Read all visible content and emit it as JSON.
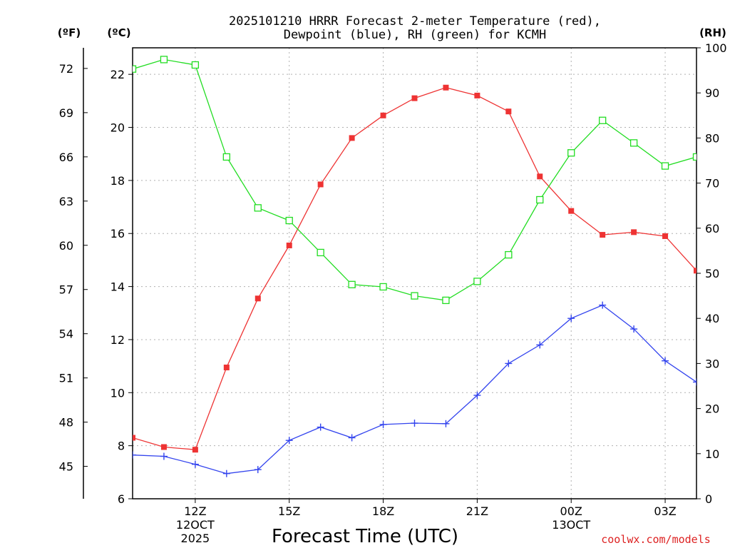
{
  "chart_data": {
    "type": "line",
    "title_line1": "2025101210 HRRR Forecast 2-meter Temperature (red),",
    "title_line2": "Dewpoint (blue), RH (green) for KCMH",
    "unit_f": "(ºF)",
    "unit_c": "(ºC)",
    "unit_rh": "(RH)",
    "xlabel": "Forecast Time (UTC)",
    "watermark": "coolwx.com/models",
    "x_hours": [
      10,
      11,
      12,
      13,
      14,
      15,
      16,
      17,
      18,
      19,
      20,
      21,
      22,
      23,
      24,
      25,
      26,
      27,
      28
    ],
    "xlim": [
      10,
      28
    ],
    "x_ticks": [
      {
        "hour": 12,
        "label": "12Z",
        "sub": [
          "12OCT",
          "2025"
        ]
      },
      {
        "hour": 15,
        "label": "15Z",
        "sub": []
      },
      {
        "hour": 18,
        "label": "18Z",
        "sub": []
      },
      {
        "hour": 21,
        "label": "21Z",
        "sub": []
      },
      {
        "hour": 24,
        "label": "00Z",
        "sub": [
          "13OCT"
        ]
      },
      {
        "hour": 27,
        "label": "03Z",
        "sub": []
      }
    ],
    "ylim_c": [
      6,
      23
    ],
    "y_ticks_c": [
      6,
      8,
      10,
      12,
      14,
      16,
      18,
      20,
      22
    ],
    "y_ticks_f": [
      45,
      48,
      51,
      54,
      57,
      60,
      63,
      66,
      69,
      72
    ],
    "ylim_rh": [
      0,
      100
    ],
    "y_ticks_rh": [
      0,
      10,
      20,
      30,
      40,
      50,
      60,
      70,
      80,
      90,
      100
    ],
    "series": [
      {
        "name": "Temperature",
        "axis": "c",
        "color": "#ee3333",
        "marker": "filled-square",
        "values": [
          8.3,
          7.95,
          7.85,
          10.95,
          13.55,
          15.55,
          17.85,
          19.6,
          20.45,
          21.1,
          21.5,
          21.2,
          20.6,
          18.15,
          16.85,
          15.95,
          16.05,
          15.9,
          14.6
        ]
      },
      {
        "name": "Dewpoint",
        "axis": "c",
        "color": "#3344ee",
        "marker": "plus",
        "values": [
          7.65,
          7.6,
          7.3,
          6.95,
          7.1,
          8.2,
          8.7,
          8.3,
          8.8,
          8.85,
          8.83,
          9.9,
          11.1,
          11.8,
          12.8,
          13.3,
          12.4,
          11.2,
          10.4
        ]
      },
      {
        "name": "RH",
        "axis": "rh",
        "color": "#22dd22",
        "marker": "open-square",
        "values": [
          95.3,
          97.4,
          96.2,
          75.8,
          64.5,
          61.7,
          54.6,
          47.5,
          47.0,
          45.0,
          44.0,
          48.2,
          54.1,
          66.3,
          76.7,
          83.9,
          78.9,
          73.8,
          75.8
        ]
      }
    ]
  }
}
